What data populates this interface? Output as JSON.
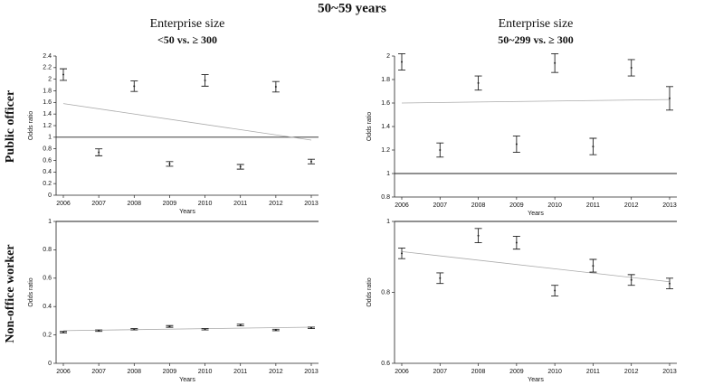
{
  "title": "50~59 years",
  "column_headers": [
    {
      "line1": "Enterprise size",
      "line2": "<50 vs. ≥ 300"
    },
    {
      "line1": "Enterprise size",
      "line2": "50~299 vs. ≥ 300"
    }
  ],
  "row_labels": [
    "Public officer",
    "Non-office worker"
  ],
  "chart_data": [
    {
      "type": "errorbar",
      "x_label": "Years",
      "y_label": "Odds ratio",
      "categories": [
        "2006",
        "2007",
        "2008",
        "2009",
        "2010",
        "2011",
        "2012",
        "2013"
      ],
      "values": [
        2.08,
        0.74,
        1.88,
        0.54,
        1.98,
        0.49,
        1.87,
        0.58
      ],
      "errors": [
        0.1,
        0.06,
        0.09,
        0.04,
        0.1,
        0.04,
        0.09,
        0.04
      ],
      "ylim": [
        0,
        2.4
      ],
      "yticks": [
        0,
        0.2,
        0.4,
        0.6,
        0.8,
        1,
        1.2,
        1.4,
        1.6,
        1.8,
        2,
        2.2,
        2.4
      ],
      "reference_line": 1,
      "trend": [
        1.58,
        0.95
      ]
    },
    {
      "type": "errorbar",
      "x_label": "Years",
      "y_label": "Odds ratio",
      "categories": [
        "2006",
        "2007",
        "2008",
        "2009",
        "2010",
        "2011",
        "2012",
        "2013"
      ],
      "values": [
        1.95,
        1.2,
        1.77,
        1.25,
        1.94,
        1.23,
        1.9,
        1.64
      ],
      "errors": [
        0.07,
        0.06,
        0.06,
        0.07,
        0.08,
        0.07,
        0.07,
        0.1
      ],
      "ylim": [
        0.8,
        2
      ],
      "yticks": [
        0.8,
        1,
        1.2,
        1.4,
        1.6,
        1.8,
        2
      ],
      "reference_line": 1,
      "trend": [
        1.6,
        1.63
      ]
    },
    {
      "type": "errorbar",
      "x_label": "Years",
      "y_label": "Odds ratio",
      "categories": [
        "2006",
        "2007",
        "2008",
        "2009",
        "2010",
        "2011",
        "2012",
        "2013"
      ],
      "values": [
        0.22,
        0.23,
        0.24,
        0.26,
        0.24,
        0.27,
        0.235,
        0.25
      ],
      "errors": [
        0.005,
        0.005,
        0.005,
        0.006,
        0.005,
        0.006,
        0.005,
        0.005
      ],
      "ylim": [
        0,
        1
      ],
      "yticks": [
        0,
        0.2,
        0.4,
        0.6,
        0.8,
        1
      ],
      "reference_line": 1,
      "trend": [
        0.23,
        0.255
      ]
    },
    {
      "type": "errorbar",
      "x_label": "Years",
      "y_label": "Odds ratio",
      "categories": [
        "2006",
        "2007",
        "2008",
        "2009",
        "2010",
        "2011",
        "2012",
        "2013"
      ],
      "values": [
        0.91,
        0.84,
        0.96,
        0.94,
        0.805,
        0.875,
        0.835,
        0.825
      ],
      "errors": [
        0.015,
        0.015,
        0.02,
        0.018,
        0.015,
        0.018,
        0.015,
        0.015
      ],
      "ylim": [
        0.6,
        1
      ],
      "yticks": [
        0.6,
        0.8,
        1
      ],
      "reference_line": 1,
      "trend": [
        0.915,
        0.83
      ]
    }
  ]
}
